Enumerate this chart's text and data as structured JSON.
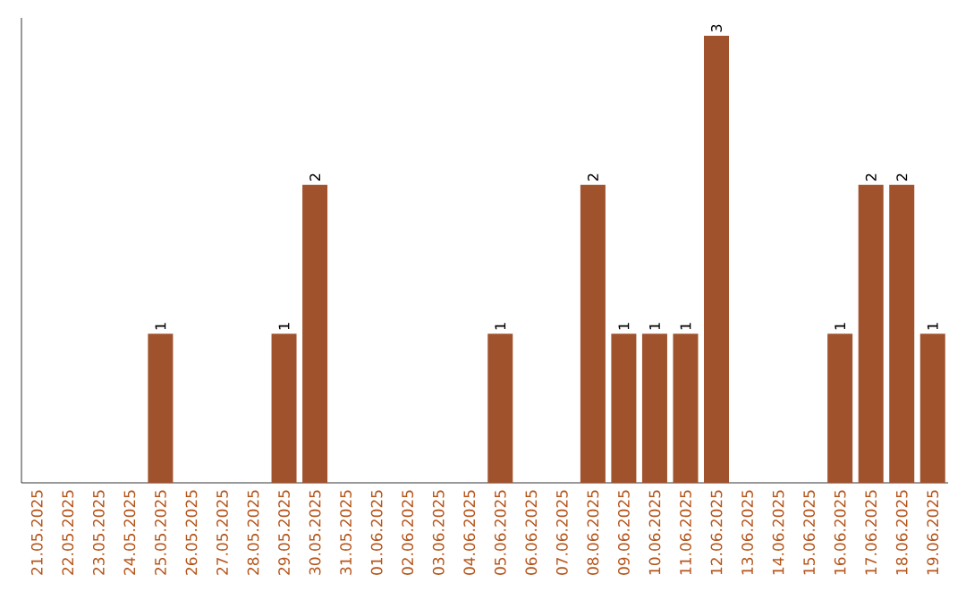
{
  "chart_data": {
    "type": "bar",
    "color": "#a0522d",
    "categories": [
      "21.05.2025",
      "22.05.2025",
      "23.05.2025",
      "24.05.2025",
      "25.05.2025",
      "26.05.2025",
      "27.05.2025",
      "28.05.2025",
      "29.05.2025",
      "30.05.2025",
      "31.05.2025",
      "01.06.2025",
      "02.06.2025",
      "03.06.2025",
      "04.06.2025",
      "05.06.2025",
      "06.06.2025",
      "07.06.2025",
      "08.06.2025",
      "09.06.2025",
      "10.06.2025",
      "11.06.2025",
      "12.06.2025",
      "13.06.2025",
      "14.06.2025",
      "15.06.2025",
      "16.06.2025",
      "17.06.2025",
      "18.06.2025",
      "19.06.2025"
    ],
    "values": [
      0,
      0,
      0,
      0,
      1,
      0,
      0,
      0,
      1,
      2,
      0,
      0,
      0,
      0,
      0,
      1,
      0,
      0,
      2,
      1,
      1,
      1,
      3,
      0,
      0,
      0,
      1,
      2,
      2,
      1
    ],
    "value_labels": [
      null,
      null,
      null,
      null,
      "1",
      null,
      null,
      null,
      "1",
      "2",
      null,
      null,
      null,
      null,
      null,
      "1",
      null,
      null,
      "2",
      "1",
      "1",
      "1",
      "3",
      null,
      null,
      null,
      "1",
      "2",
      "2",
      "1"
    ],
    "tick_labels": "x"
  }
}
